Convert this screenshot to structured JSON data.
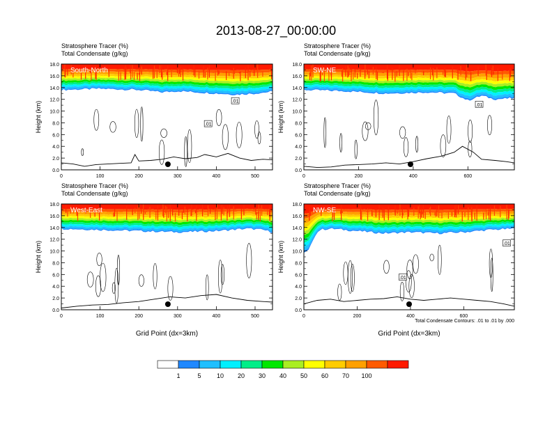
{
  "figure_title": "2013-08-27_00:00:00",
  "footnote": "Total Condensate Contours: .01 to .01 by .000",
  "colors": {
    "levels": [
      "#ffffff",
      "#1f88ff",
      "#1fbfff",
      "#00f0ff",
      "#00ee88",
      "#00e800",
      "#aaee22",
      "#ffff00",
      "#ffcc00",
      "#ffa000",
      "#ff5a00",
      "#ff1a00"
    ]
  },
  "colorbar": {
    "labels": [
      "1",
      "5",
      "10",
      "20",
      "30",
      "40",
      "50",
      "60",
      "70",
      "100"
    ]
  },
  "chart_data": [
    {
      "type": "area",
      "panel": "South-North",
      "subtitle_line1": "Stratosphere Tracer   (%)",
      "subtitle_line2": "Total Condensate   (g/kg)",
      "ylabel": "Height (km)",
      "xlabel": "",
      "xlim": [
        0,
        545
      ],
      "ylim": [
        0,
        18
      ],
      "xticks": [
        "0",
        "100",
        "200",
        "300",
        "400",
        "500"
      ],
      "xtick_values": [
        0,
        100,
        200,
        300,
        400,
        500
      ],
      "yticks": [
        "0.0",
        "2.0",
        "4.0",
        "6.0",
        "8.0",
        "10.0",
        "12.0",
        "14.0",
        "16.0",
        "18.0"
      ],
      "tracer_x": [
        0,
        100,
        200,
        260,
        300,
        400,
        450,
        500,
        545
      ],
      "tracer_bottom_km": [
        13.6,
        13.8,
        13.6,
        13.2,
        13.4,
        13.0,
        12.8,
        13.0,
        13.3
      ],
      "terrain_x": [
        0,
        30,
        60,
        90,
        120,
        150,
        180,
        190,
        200,
        230,
        260,
        290,
        320,
        350,
        370,
        400,
        430,
        460,
        490,
        520,
        545
      ],
      "terrain_km": [
        1.2,
        1.0,
        0.6,
        0.9,
        1.0,
        1.1,
        1.2,
        2.6,
        1.5,
        1.6,
        1.8,
        2.2,
        1.9,
        2.1,
        2.6,
        2.2,
        2.8,
        2.0,
        1.6,
        1.8,
        1.7
      ],
      "marker_x": 275,
      "contour_label": ".01",
      "contour_label_x": [
        448,
        378
      ],
      "contour_label_y_km": [
        11.7,
        7.8
      ]
    },
    {
      "type": "area",
      "panel": "SW-NE",
      "subtitle_line1": "Stratosphere Tracer   (%)",
      "subtitle_line2": "Total Condensate   (g/kg)",
      "ylabel": "Height (km)",
      "xlabel": "",
      "xlim": [
        0,
        770
      ],
      "ylim": [
        0,
        18
      ],
      "xticks": [
        "0",
        "200",
        "400",
        "600"
      ],
      "xtick_values": [
        0,
        200,
        400,
        600
      ],
      "yticks": [
        "0.0",
        "2.0",
        "4.0",
        "6.0",
        "8.0",
        "10.0",
        "12.0",
        "14.0",
        "16.0",
        "18.0"
      ],
      "tracer_x": [
        0,
        150,
        300,
        450,
        550,
        600,
        650,
        700,
        770
      ],
      "tracer_bottom_km": [
        13.6,
        13.4,
        13.0,
        13.2,
        13.0,
        11.8,
        12.6,
        12.0,
        12.2
      ],
      "terrain_x": [
        0,
        50,
        100,
        150,
        200,
        250,
        300,
        350,
        400,
        450,
        500,
        550,
        580,
        620,
        650,
        700,
        740,
        770
      ],
      "terrain_km": [
        0.6,
        0.4,
        0.5,
        0.8,
        0.9,
        1.0,
        1.2,
        1.0,
        1.4,
        1.9,
        2.3,
        3.0,
        4.0,
        3.0,
        1.8,
        1.6,
        1.4,
        1.2
      ],
      "marker_x": 390,
      "contour_label": ".01",
      "contour_label_x": [
        640
      ],
      "contour_label_y_km": [
        11.1
      ]
    },
    {
      "type": "area",
      "panel": "West-East",
      "subtitle_line1": "Stratosphere Tracer   (%)",
      "subtitle_line2": "Total Condensate   (g/kg)",
      "ylabel": "Height (km)",
      "xlabel": "Grid Point (dx=3km)",
      "xlim": [
        0,
        545
      ],
      "ylim": [
        0,
        18
      ],
      "xticks": [
        "0",
        "100",
        "200",
        "300",
        "400",
        "500"
      ],
      "xtick_values": [
        0,
        100,
        200,
        300,
        400,
        500
      ],
      "yticks": [
        "0.0",
        "2.0",
        "4.0",
        "6.0",
        "8.0",
        "10.0",
        "12.0",
        "14.0",
        "16.0",
        "18.0"
      ],
      "tracer_x": [
        0,
        100,
        200,
        300,
        400,
        480,
        520,
        545
      ],
      "tracer_bottom_km": [
        13.8,
        13.6,
        13.4,
        13.2,
        13.4,
        13.8,
        13.6,
        13.2
      ],
      "terrain_x": [
        0,
        40,
        80,
        120,
        160,
        200,
        240,
        280,
        320,
        360,
        400,
        440,
        480,
        520,
        545
      ],
      "terrain_km": [
        0.3,
        0.6,
        0.8,
        0.9,
        1.2,
        1.4,
        1.8,
        2.2,
        2.0,
        2.4,
        2.6,
        2.0,
        1.6,
        1.4,
        1.3
      ],
      "marker_x": 275,
      "contour_label": "",
      "contour_label_x": [],
      "contour_label_y_km": []
    },
    {
      "type": "area",
      "panel": "NW-SE",
      "subtitle_line1": "Stratosphere Tracer   (%)",
      "subtitle_line2": "Total Condensate   (g/kg)",
      "ylabel": "Height (km)",
      "xlabel": "Grid Point (dx=3km)",
      "xlim": [
        0,
        790
      ],
      "ylim": [
        0,
        18
      ],
      "xticks": [
        "0",
        "200",
        "400",
        "600"
      ],
      "xtick_values": [
        0,
        200,
        400,
        600
      ],
      "yticks": [
        "0.0",
        "2.0",
        "4.0",
        "6.0",
        "8.0",
        "10.0",
        "12.0",
        "14.0",
        "16.0",
        "18.0"
      ],
      "tracer_x": [
        0,
        20,
        40,
        60,
        100,
        200,
        300,
        400,
        500,
        600,
        700,
        790
      ],
      "tracer_bottom_km": [
        9.6,
        10.2,
        12.6,
        13.6,
        13.8,
        13.4,
        13.0,
        13.2,
        13.0,
        13.2,
        13.6,
        13.8
      ],
      "terrain_x": [
        0,
        50,
        100,
        150,
        200,
        250,
        300,
        350,
        400,
        450,
        500,
        550,
        600,
        650,
        700,
        750,
        790
      ],
      "terrain_km": [
        1.0,
        1.6,
        1.8,
        1.4,
        1.6,
        1.8,
        1.9,
        2.2,
        1.8,
        1.6,
        1.8,
        2.0,
        1.8,
        1.6,
        1.4,
        1.0,
        0.6
      ],
      "marker_x": 395,
      "contour_label": ".01",
      "contour_label_x": [
        370,
        760
      ],
      "contour_label_y_km": [
        5.5,
        11.3
      ]
    }
  ]
}
